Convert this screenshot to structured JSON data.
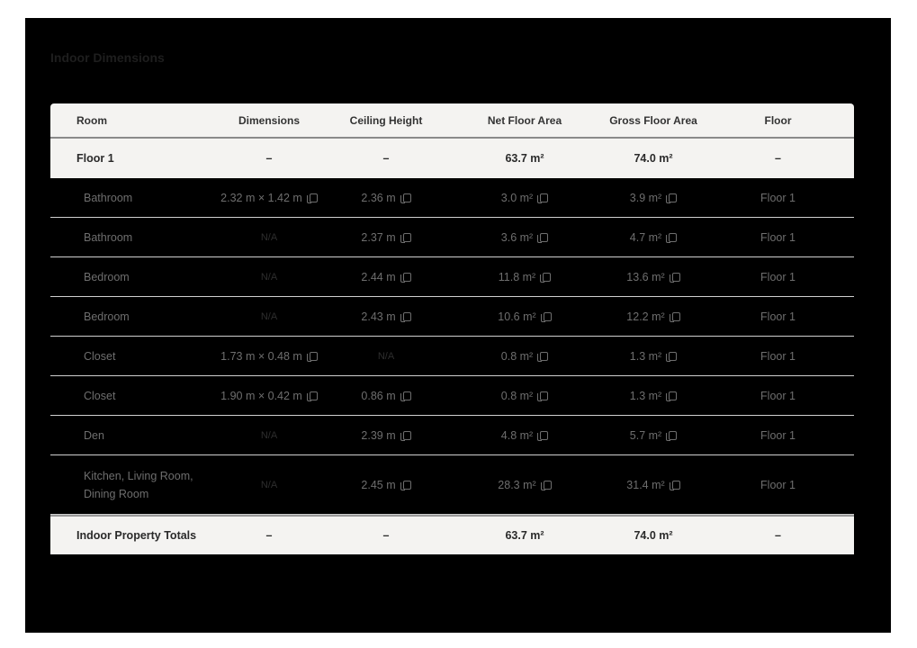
{
  "title": "Indoor Dimensions",
  "columns": [
    "Room",
    "Dimensions",
    "Ceiling Height",
    "Net Floor Area",
    "Gross Floor Area",
    "Floor"
  ],
  "floor_group": {
    "room": "Floor 1",
    "dimensions": "–",
    "ceiling": "–",
    "net": "63.7 m²",
    "gross": "74.0 m²",
    "floor": "–"
  },
  "rows": [
    {
      "room": "Bathroom",
      "dimensions": "2.32 m × 1.42 m",
      "ceiling": "2.36 m",
      "net": "3.0 m²",
      "gross": "3.9 m²",
      "floor": "Floor 1"
    },
    {
      "room": "Bathroom",
      "dimensions": "N/A",
      "ceiling": "2.37 m",
      "net": "3.6 m²",
      "gross": "4.7 m²",
      "floor": "Floor 1"
    },
    {
      "room": "Bedroom",
      "dimensions": "N/A",
      "ceiling": "2.44 m",
      "net": "11.8 m²",
      "gross": "13.6 m²",
      "floor": "Floor 1"
    },
    {
      "room": "Bedroom",
      "dimensions": "N/A",
      "ceiling": "2.43 m",
      "net": "10.6 m²",
      "gross": "12.2 m²",
      "floor": "Floor 1"
    },
    {
      "room": "Closet",
      "dimensions": "1.73 m × 0.48 m",
      "ceiling": "N/A",
      "net": "0.8 m²",
      "gross": "1.3 m²",
      "floor": "Floor 1"
    },
    {
      "room": "Closet",
      "dimensions": "1.90 m × 0.42 m",
      "ceiling": "0.86 m",
      "net": "0.8 m²",
      "gross": "1.3 m²",
      "floor": "Floor 1"
    },
    {
      "room": "Den",
      "dimensions": "N/A",
      "ceiling": "2.39 m",
      "net": "4.8 m²",
      "gross": "5.7 m²",
      "floor": "Floor 1"
    },
    {
      "room": "Kitchen, Living Room, Dining Room",
      "dimensions": "N/A",
      "ceiling": "2.45 m",
      "net": "28.3 m²",
      "gross": "31.4 m²",
      "floor": "Floor 1"
    }
  ],
  "totals": {
    "room": "Indoor Property Totals",
    "dimensions": "–",
    "ceiling": "–",
    "net": "63.7 m²",
    "gross": "74.0 m²",
    "floor": "–"
  }
}
